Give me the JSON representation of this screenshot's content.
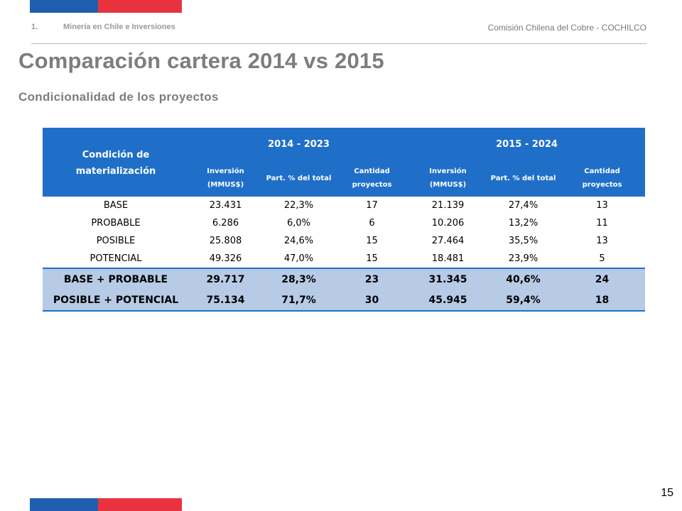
{
  "colors": {
    "flag_blue": "#1f5fae",
    "flag_red": "#e8333f",
    "header_blue": "#1f6fc9",
    "summary_fill": "#b7cbe6"
  },
  "header": {
    "section_number": "1.",
    "section_title": "Minería en Chile e Inversiones",
    "organization": "Comisión Chilena  del Cobre - COCHILCO"
  },
  "title": "Comparación cartera 2014 vs 2015",
  "subtitle": "Condicionalidad de los proyectos",
  "table": {
    "condition_header_line1": "Condición de",
    "condition_header_line2": "materialización",
    "periods": [
      "2014 - 2023",
      "2015 - 2024"
    ],
    "subheaders": [
      {
        "line1": "Inversión",
        "line2": "(MMUS$)"
      },
      {
        "line1": "Part. % del total",
        "line2": ""
      },
      {
        "line1": "Cantidad",
        "line2": "proyectos"
      }
    ],
    "rows": [
      {
        "label": "BASE",
        "values": [
          "23.431",
          "22,3%",
          "17",
          "21.139",
          "27,4%",
          "13"
        ]
      },
      {
        "label": "PROBABLE",
        "values": [
          "6.286",
          "6,0%",
          "6",
          "10.206",
          "13,2%",
          "11"
        ]
      },
      {
        "label": "POSIBLE",
        "values": [
          "25.808",
          "24,6%",
          "15",
          "27.464",
          "35,5%",
          "13"
        ]
      },
      {
        "label": "POTENCIAL",
        "values": [
          "49.326",
          "47,0%",
          "15",
          "18.481",
          "23,9%",
          "5"
        ]
      }
    ],
    "summary_rows": [
      {
        "label": "BASE + PROBABLE",
        "values": [
          "29.717",
          "28,3%",
          "23",
          "31.345",
          "40,6%",
          "24"
        ]
      },
      {
        "label": "POSIBLE + POTENCIAL",
        "values": [
          "75.134",
          "71,7%",
          "30",
          "45.945",
          "59,4%",
          "18"
        ]
      }
    ]
  },
  "page_number": "15"
}
